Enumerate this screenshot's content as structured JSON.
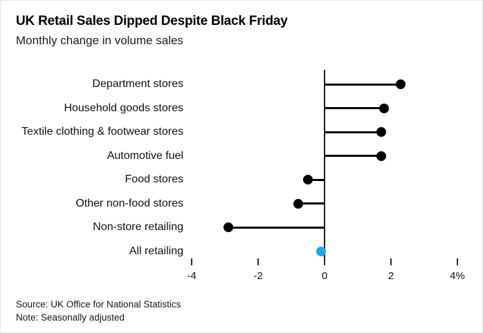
{
  "header": {
    "title": "UK Retail Sales Dipped Despite Black Friday",
    "subtitle": "Monthly change in volume sales"
  },
  "footer": {
    "source": "Source: UK Office for National Statistics",
    "note": "Note: Seasonally adjusted"
  },
  "chart_data": {
    "type": "bar",
    "variant": "horizontal-lollipop",
    "categories": [
      "Department stores",
      "Household goods stores",
      "Textile clothing & footwear stores",
      "Automotive fuel",
      "Food stores",
      "Other non-food stores",
      "Non-store retailing",
      "All retailing"
    ],
    "values": [
      2.3,
      1.8,
      1.7,
      1.7,
      -0.5,
      -0.8,
      -2.9,
      -0.1
    ],
    "unit": "%",
    "title": "UK Retail Sales Dipped Despite Black Friday",
    "subtitle": "Monthly change in volume sales",
    "xlabel": "",
    "ylabel": "",
    "xlim": [
      -4,
      4
    ],
    "x_ticks": [
      "-4",
      "-2",
      "0",
      "2",
      "4%"
    ],
    "x_tick_values": [
      -4,
      -2,
      0,
      2,
      4
    ],
    "grid": false,
    "legend": false,
    "highlight_category": "All retailing",
    "colors": {
      "dot": "#000000",
      "highlight_dot": "#1ca7e8",
      "stem": "#000000",
      "axis": "#1a1a1a",
      "text": "#111111"
    }
  }
}
